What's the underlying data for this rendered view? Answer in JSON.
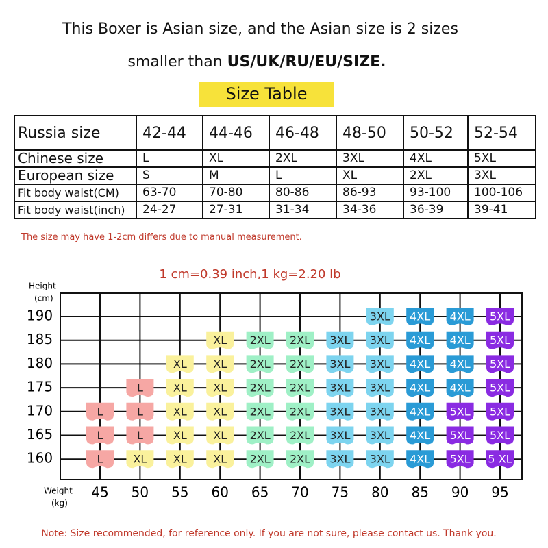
{
  "header": {
    "line1": "This Boxer is Asian size, and the Asian size is 2 sizes",
    "line2_plain": "smaller than",
    "line2_bold": "US/UK/RU/EU/SIZE.",
    "tag": "Size Table"
  },
  "table": {
    "rows": [
      [
        "Russia size",
        "42-44",
        "44-46",
        "46-48",
        "48-50",
        "50-52",
        "52-54"
      ],
      [
        "Chinese size",
        "L",
        "XL",
        "2XL",
        "3XL",
        "4XL",
        "5XL"
      ],
      [
        "European size",
        "S",
        "M",
        "L",
        "XL",
        "2XL",
        "3XL"
      ],
      [
        "Fit body waist(CM)",
        "63-70",
        "70-80",
        "80-86",
        "86-93",
        "93-100",
        "100-106"
      ],
      [
        "Fit body waist(inch)",
        "24-27",
        "27-31",
        "31-34",
        "34-36",
        "36-39",
        "39-41"
      ]
    ]
  },
  "note": "The size may have 1-2cm differs due to manual measurement.",
  "grid": {
    "conversion": "1 cm=0.39 inch,1 kg=2.20 lb",
    "y_title": [
      "Height",
      "(cm)"
    ],
    "x_title": [
      "Weight",
      "(kg)"
    ],
    "heights": [
      "190",
      "185",
      "180",
      "175",
      "170",
      "165",
      "160"
    ],
    "weights": [
      "45",
      "50",
      "55",
      "60",
      "65",
      "70",
      "75",
      "80",
      "85",
      "90",
      "95"
    ],
    "size_colors": {
      "L": "#f6a7a4",
      "XL": "#faf19c",
      "2XL": "#9ff0c6",
      "3XL": "#7dd4ef",
      "4XL": "#2a9bd6",
      "5XL": "#8a2be2",
      "5 XL": "#8a2be2"
    },
    "cells": [
      [
        null,
        null,
        null,
        null,
        null,
        null,
        null,
        "3XL",
        "4XL",
        "4XL",
        "5XL"
      ],
      [
        null,
        null,
        null,
        "XL",
        "2XL",
        "2XL",
        "3XL",
        "3XL",
        "4XL",
        "4XL",
        "5XL"
      ],
      [
        null,
        null,
        "XL",
        "XL",
        "2XL",
        "2XL",
        "3XL",
        "3XL",
        "4XL",
        "4XL",
        "5XL"
      ],
      [
        null,
        "L",
        "XL",
        "XL",
        "2XL",
        "2XL",
        "3XL",
        "3XL",
        "4XL",
        "4XL",
        "5XL"
      ],
      [
        "L",
        "L",
        "XL",
        "XL",
        "2XL",
        "2XL",
        "3XL",
        "3XL",
        "4XL",
        "5XL",
        "5XL"
      ],
      [
        "L",
        "L",
        "XL",
        "XL",
        "2XL",
        "2XL",
        "3XL",
        "3XL",
        "4XL",
        "5XL",
        "5XL"
      ],
      [
        "L",
        "XL",
        "XL",
        "XL",
        "2XL",
        "2XL",
        "3XL",
        "3XL",
        "4XL",
        "5XL",
        "5 XL"
      ]
    ]
  },
  "footer": "Note: Size recommended, for reference only. If you are not sure, please contact us. Thank you."
}
